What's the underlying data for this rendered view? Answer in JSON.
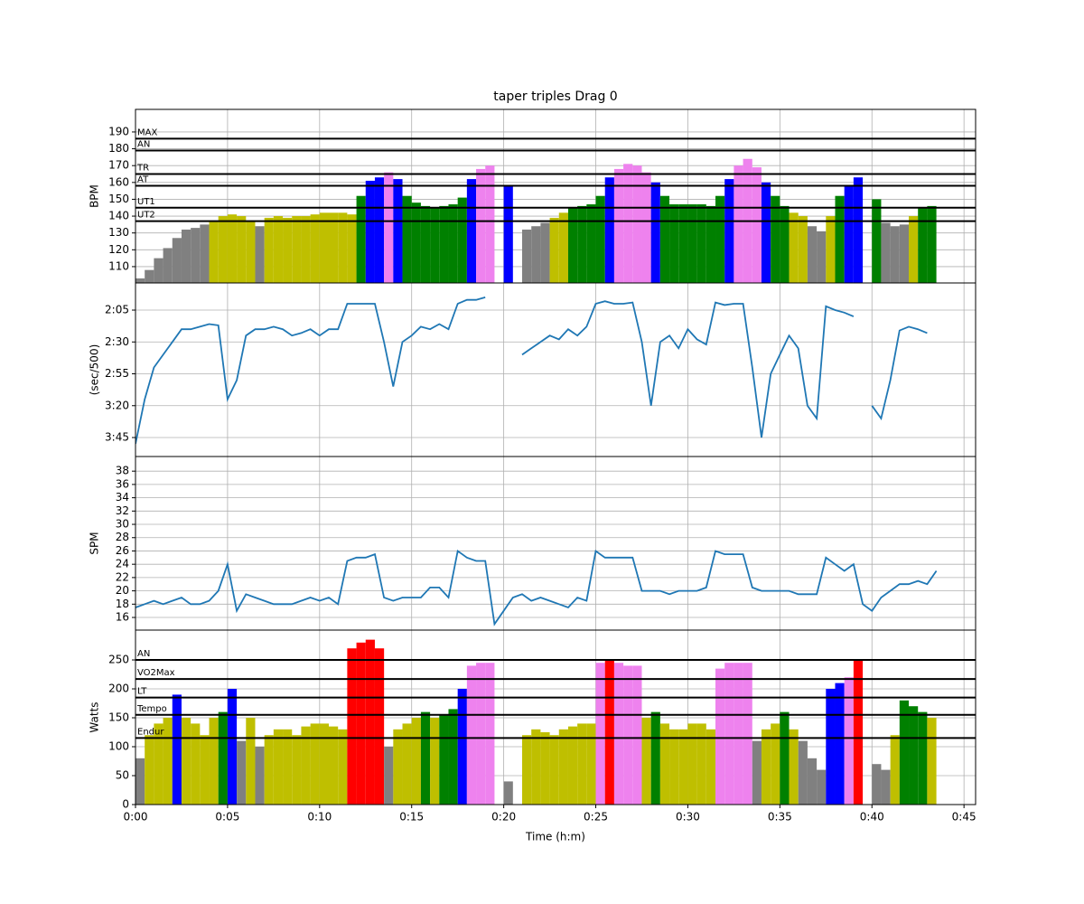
{
  "chart_data": [
    {
      "type": "bar",
      "title": "taper triples Drag 0",
      "ylabel": "BPM",
      "x": [
        0,
        0.5,
        1,
        1.5,
        2,
        2.5,
        3,
        3.5,
        4,
        4.5,
        5,
        5.5,
        6,
        6.5,
        7,
        7.5,
        8,
        8.5,
        9,
        9.5,
        10,
        10.5,
        11,
        11.5,
        12,
        12.5,
        13,
        13.5,
        14,
        14.5,
        15,
        15.5,
        16,
        16.5,
        17,
        17.5,
        18,
        18.5,
        19,
        19.5,
        20,
        20.5,
        21,
        21.5,
        22,
        22.5,
        23,
        23.5,
        24,
        24.5,
        25,
        25.5,
        26,
        26.5,
        27,
        27.5,
        28,
        28.5,
        29,
        29.5,
        30,
        30.5,
        31,
        31.5,
        32,
        32.5,
        33,
        33.5,
        34,
        34.5,
        35,
        35.5,
        36,
        36.5,
        37,
        37.5,
        38,
        38.5,
        39,
        39.5,
        40,
        40.5,
        41,
        41.5,
        42,
        42.5,
        43,
        43.5
      ],
      "values": [
        103,
        108,
        115,
        121,
        127,
        132,
        133,
        135,
        137,
        140,
        141,
        140,
        137,
        134,
        139,
        140,
        139,
        140,
        140,
        141,
        142,
        142,
        142,
        141,
        152,
        161,
        163,
        166,
        162,
        152,
        148,
        146,
        145,
        146,
        147,
        151,
        162,
        168,
        170,
        null,
        158,
        null,
        132,
        134,
        136,
        139,
        142,
        145,
        146,
        147,
        152,
        163,
        168,
        171,
        170,
        166,
        160,
        152,
        147,
        147,
        147,
        147,
        146,
        152,
        162,
        170,
        174,
        169,
        160,
        152,
        146,
        142,
        140,
        134,
        131,
        140,
        152,
        158,
        163,
        null,
        150,
        136,
        134,
        135,
        140,
        145,
        146,
        null
      ],
      "xlim": [
        0,
        45.63
      ],
      "ylim": [
        100.3,
        203.4
      ],
      "yticks": [
        110,
        120,
        130,
        140,
        150,
        160,
        170,
        180,
        190
      ],
      "grid": true,
      "below_color": "#808080",
      "zones": [
        {
          "name": "UT2",
          "value": 137,
          "color": "#bfbf00"
        },
        {
          "name": "UT1",
          "value": 145,
          "color": "#008000"
        },
        {
          "name": "AT",
          "value": 158,
          "color": "#0000ff"
        },
        {
          "name": "TR",
          "value": 165,
          "color": "#ee82ee"
        },
        {
          "name": "AN",
          "value": 179,
          "color": "#ff0000"
        },
        {
          "name": "MAX",
          "value": 186,
          "color": "#ff0000"
        }
      ]
    },
    {
      "type": "line",
      "ylabel": "(sec/500)",
      "color": "#1f77b4",
      "x": [
        0,
        0.5,
        1,
        1.5,
        2,
        2.5,
        3,
        3.5,
        4,
        4.5,
        5,
        5.5,
        6,
        6.5,
        7,
        7.5,
        8,
        8.5,
        9,
        9.5,
        10,
        10.5,
        11,
        11.5,
        12,
        12.5,
        13,
        13.5,
        14,
        14.5,
        15,
        15.5,
        16,
        16.5,
        17,
        17.5,
        18,
        18.5,
        19,
        19.5,
        20,
        20.5,
        21,
        21.5,
        22,
        22.5,
        23,
        23.5,
        24,
        24.5,
        25,
        25.5,
        26,
        26.5,
        27,
        27.5,
        28,
        28.5,
        29,
        29.5,
        30,
        30.5,
        31,
        31.5,
        32,
        32.5,
        33,
        33.5,
        34,
        34.5,
        35,
        35.5,
        36,
        36.5,
        37,
        37.5,
        38,
        38.5,
        39,
        39.5,
        40,
        40.5,
        41,
        41.5,
        42,
        42.5,
        43,
        43.5
      ],
      "values": [
        230,
        195,
        170,
        160,
        150,
        140,
        140,
        138,
        136,
        137,
        195,
        180,
        145,
        140,
        140,
        138,
        140,
        145,
        143,
        140,
        145,
        140,
        140,
        120,
        120,
        120,
        120,
        150,
        185,
        150,
        145,
        138,
        140,
        136,
        140,
        120,
        117,
        117,
        115,
        null,
        null,
        null,
        160,
        155,
        150,
        145,
        148,
        140,
        145,
        138,
        120,
        118,
        120,
        120,
        119,
        150,
        200,
        150,
        145,
        155,
        140,
        148,
        152,
        119,
        121,
        120,
        120,
        170,
        225,
        175,
        160,
        145,
        155,
        200,
        210,
        122,
        125,
        127,
        130,
        null,
        200,
        210,
        180,
        141,
        138,
        140,
        143,
        null
      ],
      "xlim": [
        0,
        45.63
      ],
      "ylim": [
        239.9,
        103.7
      ],
      "grid": true,
      "yticks": [
        {
          "value": 125,
          "label": "2:05"
        },
        {
          "value": 150,
          "label": "2:30"
        },
        {
          "value": 175,
          "label": "2:55"
        },
        {
          "value": 200,
          "label": "3:20"
        },
        {
          "value": 225,
          "label": "3:45"
        }
      ]
    },
    {
      "type": "line",
      "ylabel": "SPM",
      "color": "#1f77b4",
      "x": [
        0,
        0.5,
        1,
        1.5,
        2,
        2.5,
        3,
        3.5,
        4,
        4.5,
        5,
        5.5,
        6,
        6.5,
        7,
        7.5,
        8,
        8.5,
        9,
        9.5,
        10,
        10.5,
        11,
        11.5,
        12,
        12.5,
        13,
        13.5,
        14,
        14.5,
        15,
        15.5,
        16,
        16.5,
        17,
        17.5,
        18,
        18.5,
        19,
        19.5,
        20,
        20.5,
        21,
        21.5,
        22,
        22.5,
        23,
        23.5,
        24,
        24.5,
        25,
        25.5,
        26,
        26.5,
        27,
        27.5,
        28,
        28.5,
        29,
        29.5,
        30,
        30.5,
        31,
        31.5,
        32,
        32.5,
        33,
        33.5,
        34,
        34.5,
        35,
        35.5,
        36,
        36.5,
        37,
        37.5,
        38,
        38.5,
        39,
        39.5,
        40,
        40.5,
        41,
        41.5,
        42,
        42.5,
        43,
        43.5
      ],
      "values": [
        17.5,
        18,
        18.5,
        18,
        18.5,
        19,
        18,
        18,
        18.5,
        20,
        24,
        17,
        19.5,
        19,
        18.5,
        18,
        18,
        18,
        18.5,
        19,
        18.5,
        19,
        18,
        24.5,
        25,
        25,
        25.5,
        19,
        18.5,
        19,
        19,
        19,
        20.5,
        20.5,
        19,
        26,
        25,
        24.5,
        24.5,
        15,
        17,
        19,
        19.5,
        18.5,
        19,
        18.5,
        18,
        17.5,
        19,
        18.5,
        26,
        25,
        25,
        25,
        25,
        20,
        20,
        20,
        19.5,
        20,
        20,
        20,
        20.5,
        26,
        25.5,
        25.5,
        25.5,
        20.5,
        20,
        20,
        20,
        20,
        19.5,
        19.5,
        19.5,
        25,
        24,
        23,
        24,
        18,
        17,
        19,
        20,
        21,
        21,
        21.5,
        21,
        23
      ],
      "xlim": [
        0,
        45.63
      ],
      "ylim": [
        14.1,
        40.2
      ],
      "yticks": [
        16,
        18,
        20,
        22,
        24,
        26,
        28,
        30,
        32,
        34,
        36,
        38
      ],
      "grid": true
    },
    {
      "type": "bar",
      "ylabel": "Watts",
      "xlabel": "Time (h:m)",
      "x": [
        0,
        0.5,
        1,
        1.5,
        2,
        2.5,
        3,
        3.5,
        4,
        4.5,
        5,
        5.5,
        6,
        6.5,
        7,
        7.5,
        8,
        8.5,
        9,
        9.5,
        10,
        10.5,
        11,
        11.5,
        12,
        12.5,
        13,
        13.5,
        14,
        14.5,
        15,
        15.5,
        16,
        16.5,
        17,
        17.5,
        18,
        18.5,
        19,
        19.5,
        20,
        20.5,
        21,
        21.5,
        22,
        22.5,
        23,
        23.5,
        24,
        24.5,
        25,
        25.5,
        26,
        26.5,
        27,
        27.5,
        28,
        28.5,
        29,
        29.5,
        30,
        30.5,
        31,
        31.5,
        32,
        32.5,
        33,
        33.5,
        34,
        34.5,
        35,
        35.5,
        36,
        36.5,
        37,
        37.5,
        38,
        38.5,
        39,
        39.5,
        40,
        40.5,
        41,
        41.5,
        42,
        42.5,
        43,
        43.5
      ],
      "values": [
        80,
        120,
        140,
        150,
        190,
        150,
        140,
        120,
        150,
        160,
        200,
        110,
        150,
        100,
        120,
        130,
        130,
        120,
        135,
        140,
        140,
        135,
        130,
        270,
        280,
        285,
        270,
        100,
        130,
        140,
        150,
        160,
        150,
        155,
        165,
        200,
        240,
        245,
        245,
        null,
        40,
        null,
        120,
        130,
        125,
        120,
        130,
        135,
        140,
        140,
        245,
        250,
        245,
        240,
        240,
        150,
        160,
        140,
        130,
        130,
        140,
        140,
        130,
        235,
        245,
        245,
        245,
        110,
        130,
        140,
        160,
        130,
        110,
        80,
        60,
        200,
        210,
        220,
        250,
        null,
        70,
        60,
        120,
        180,
        170,
        160,
        150,
        null
      ],
      "xlim": [
        0,
        45.63
      ],
      "ylim": [
        0,
        301.6
      ],
      "yticks": [
        0,
        50,
        100,
        150,
        200,
        250
      ],
      "grid": true,
      "xticks": [
        {
          "value": 0,
          "label": "0:00"
        },
        {
          "value": 5,
          "label": "0:05"
        },
        {
          "value": 10,
          "label": "0:10"
        },
        {
          "value": 15,
          "label": "0:15"
        },
        {
          "value": 20,
          "label": "0:20"
        },
        {
          "value": 25,
          "label": "0:25"
        },
        {
          "value": 30,
          "label": "0:30"
        },
        {
          "value": 35,
          "label": "0:35"
        },
        {
          "value": 40,
          "label": "0:40"
        },
        {
          "value": 45,
          "label": "0:45"
        }
      ],
      "below_color": "#808080",
      "zones": [
        {
          "name": "Endur",
          "value": 115,
          "color": "#bfbf00"
        },
        {
          "name": "Tempo",
          "value": 155,
          "color": "#008000"
        },
        {
          "name": "LT",
          "value": 185,
          "color": "#0000ff"
        },
        {
          "name": "VO2Max",
          "value": 217,
          "color": "#ee82ee"
        },
        {
          "name": "AN",
          "value": 250,
          "color": "#ff0000"
        }
      ]
    }
  ]
}
